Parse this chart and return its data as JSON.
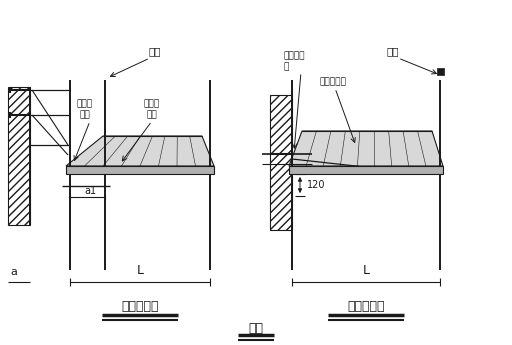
{
  "bg_color": "#ffffff",
  "line_color": "#1a1a1a",
  "title_left": "双排脚手架",
  "title_right": "单排脚手架",
  "caption": "图一",
  "label_ligan_left": "立杆",
  "label_hengxiang_left": "横向水\n平杆",
  "label_zongxiang_left": "纵向水\n平杆",
  "label_ligan_right": "立杆",
  "label_hengxiang_right": "横向水平\n杆",
  "label_zongxiang_right": "纵向水平杆",
  "label_120": "120",
  "label_a1": "a1",
  "label_a": "a",
  "label_L_left": "L",
  "label_L_right": "L"
}
